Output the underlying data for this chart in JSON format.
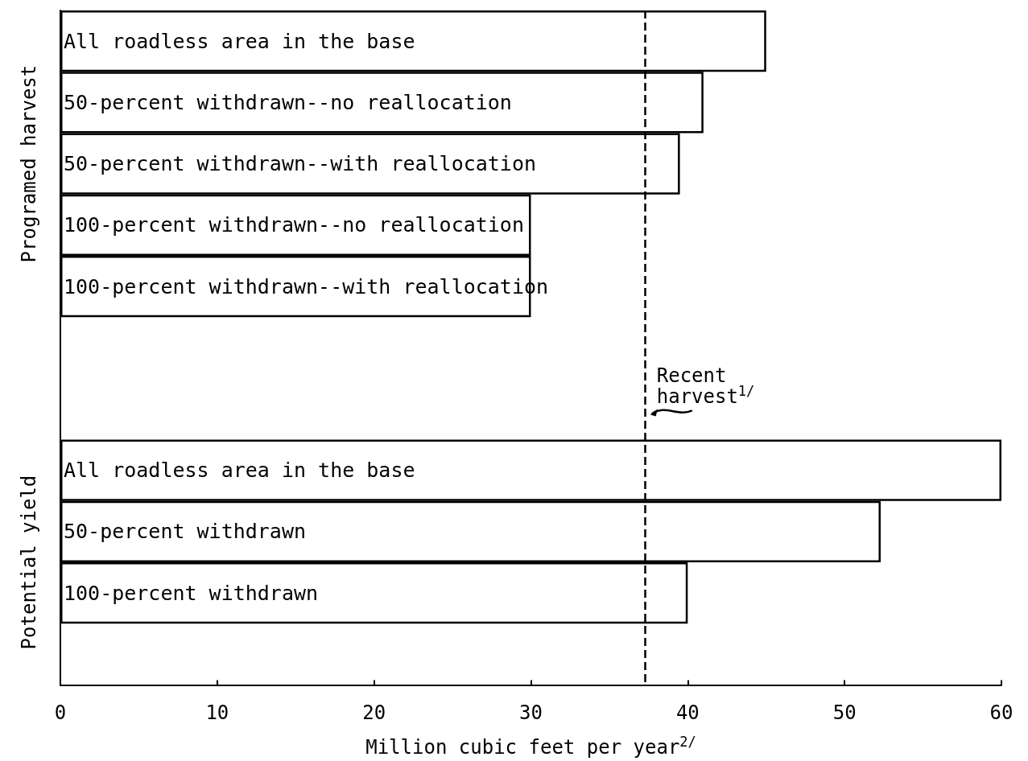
{
  "chart_data": {
    "type": "bar",
    "orientation": "horizontal",
    "categories": [
      "All roadless area in the base",
      "50-percent withdrawn--no reallocation",
      "50-percent withdrawn--with reallocation",
      "100-percent withdrawn--no reallocation",
      "100-percent withdrawn--with reallocation",
      null,
      null,
      "All roadless area in the base",
      "50-percent withdrawn",
      "100-percent withdrawn",
      null
    ],
    "values": [
      45,
      41,
      39.5,
      30,
      30,
      null,
      null,
      60,
      52.3,
      40,
      null
    ],
    "color": "#ffffff",
    "xlim": [
      0,
      60
    ],
    "xticks": [
      0,
      10,
      20,
      30,
      40,
      50,
      60
    ],
    "xlabel": "Million cubic feet per year$^{2/}$",
    "annotations": [
      "Programed harvest",
      "Potential yield"
    ],
    "ref_lines": [
      {
        "axis": "x",
        "value": 37.3,
        "label": "Recent harvest$^{1/}$",
        "line_style": "dashed",
        "color": "#000000"
      }
    ],
    "grid": false
  }
}
